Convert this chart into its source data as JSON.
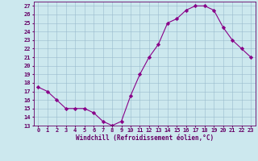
{
  "x": [
    0,
    1,
    2,
    3,
    4,
    5,
    6,
    7,
    8,
    9,
    10,
    11,
    12,
    13,
    14,
    15,
    16,
    17,
    18,
    19,
    20,
    21,
    22,
    23
  ],
  "y": [
    17.5,
    17.0,
    16.0,
    15.0,
    15.0,
    15.0,
    14.5,
    13.5,
    13.0,
    13.5,
    16.5,
    19.0,
    21.0,
    22.5,
    25.0,
    25.5,
    26.5,
    27.0,
    27.0,
    26.5,
    24.5,
    23.0,
    22.0,
    21.0
  ],
  "line_color": "#880088",
  "marker": "D",
  "marker_size": 2.2,
  "bg_color": "#cce8ee",
  "grid_color": "#99bbcc",
  "axis_color": "#660066",
  "xlabel": "Windchill (Refroidissement éolien,°C)",
  "xlim": [
    -0.5,
    23.5
  ],
  "ylim": [
    13,
    27.5
  ],
  "yticks": [
    13,
    14,
    15,
    16,
    17,
    18,
    19,
    20,
    21,
    22,
    23,
    24,
    25,
    26,
    27
  ],
  "xticks": [
    0,
    1,
    2,
    3,
    4,
    5,
    6,
    7,
    8,
    9,
    10,
    11,
    12,
    13,
    14,
    15,
    16,
    17,
    18,
    19,
    20,
    21,
    22,
    23
  ]
}
